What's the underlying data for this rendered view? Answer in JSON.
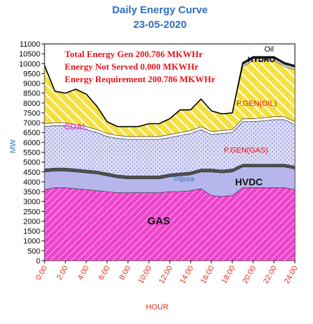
{
  "chart_data": {
    "type": "area",
    "title": "Daily Energy Curve",
    "subtitle": "23-05-2020",
    "xlabel": "HOUR",
    "ylabel": "MW",
    "ylim": [
      0,
      11000
    ],
    "yticks": [
      "0",
      "500",
      "1000",
      "1500",
      "2000",
      "2500",
      "3000",
      "3500",
      "4000",
      "4500",
      "5000",
      "5500",
      "6000",
      "6500",
      "7000",
      "7500",
      "8000",
      "8500",
      "9000",
      "9500",
      "10000",
      "10500",
      "11000"
    ],
    "xticks": [
      "0:00",
      "2:00",
      "4:00",
      "6:00",
      "8:00",
      "10:00",
      "12:00",
      "14:00",
      "16:00",
      "18:00",
      "20:00",
      "22:00",
      "24:00"
    ],
    "x": [
      0,
      1,
      2,
      3,
      4,
      5,
      6,
      7,
      8,
      9,
      10,
      11,
      12,
      13,
      14,
      15,
      16,
      17,
      18,
      19,
      20,
      21,
      22,
      23,
      24
    ],
    "series": [
      {
        "name": "GAS",
        "color": "#ee44cc",
        "values": [
          3600,
          3700,
          3700,
          3650,
          3600,
          3550,
          3500,
          3450,
          3450,
          3450,
          3450,
          3450,
          3500,
          3500,
          3550,
          3650,
          3300,
          3250,
          3300,
          3700,
          3700,
          3700,
          3700,
          3700,
          3600
        ]
      },
      {
        "name": "HVDC",
        "color": "#b8b8ee",
        "values": [
          900,
          850,
          850,
          850,
          850,
          850,
          800,
          750,
          700,
          700,
          700,
          700,
          750,
          800,
          800,
          850,
          1200,
          1200,
          1200,
          1050,
          1050,
          1050,
          1050,
          1050,
          1050
        ]
      },
      {
        "name": "Tripura",
        "color": "#444444",
        "values": [
          150,
          150,
          150,
          150,
          150,
          150,
          150,
          150,
          150,
          150,
          150,
          150,
          150,
          150,
          150,
          150,
          150,
          150,
          150,
          150,
          150,
          150,
          150,
          150,
          150
        ]
      },
      {
        "name": "P.GEN(GAS)",
        "color": "#c8c8f0",
        "values": [
          2150,
          2150,
          2150,
          2100,
          2050,
          1950,
          1850,
          1850,
          1850,
          1850,
          1850,
          1850,
          1850,
          1900,
          1950,
          2000,
          1750,
          1850,
          1850,
          2150,
          2150,
          2200,
          2250,
          2250,
          2100
        ]
      },
      {
        "name": "COAL",
        "color": "#ffffff",
        "values": [
          150,
          150,
          150,
          150,
          150,
          150,
          150,
          150,
          150,
          150,
          150,
          150,
          150,
          150,
          150,
          150,
          150,
          150,
          150,
          150,
          150,
          150,
          150,
          150,
          150
        ]
      },
      {
        "name": "P.GEN(OIL)",
        "color": "#f5e040",
        "values": [
          2950,
          1600,
          1500,
          1800,
          1650,
          1200,
          600,
          450,
          500,
          500,
          650,
          650,
          800,
          1150,
          1050,
          1400,
          1050,
          850,
          850,
          2650,
          2950,
          2900,
          2850,
          2550,
          2650
        ]
      },
      {
        "name": "HYDRO",
        "color": "#e8e8e8",
        "values": [
          0,
          0,
          0,
          0,
          0,
          0,
          0,
          0,
          0,
          0,
          0,
          0,
          0,
          0,
          0,
          0,
          0,
          0,
          0,
          100,
          100,
          100,
          100,
          100,
          100
        ]
      },
      {
        "name": "Oil",
        "color": "#3a3a3a",
        "values": [
          0,
          0,
          0,
          0,
          0,
          0,
          0,
          0,
          0,
          0,
          0,
          0,
          0,
          0,
          0,
          0,
          0,
          0,
          0,
          100,
          100,
          100,
          100,
          100,
          100
        ]
      }
    ],
    "annotations": [
      "Total Energy Gen 200.786 MKWHr",
      "Energy Not Served  0.000 MKWHr",
      "Energy Requirement    200.786 MKWHr"
    ],
    "grid": false,
    "legend": "inline"
  }
}
